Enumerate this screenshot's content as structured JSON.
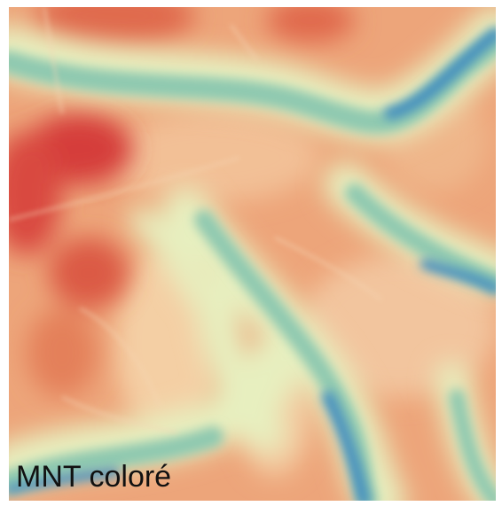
{
  "map": {
    "label": "MNT coloré",
    "palette": {
      "high": "#d73a3a",
      "mid_high": "#e98e62",
      "mid": "#f3c99a",
      "low_mid": "#e6f0c2",
      "low": "#8cc7b0",
      "lowest": "#2e7bb6"
    }
  }
}
